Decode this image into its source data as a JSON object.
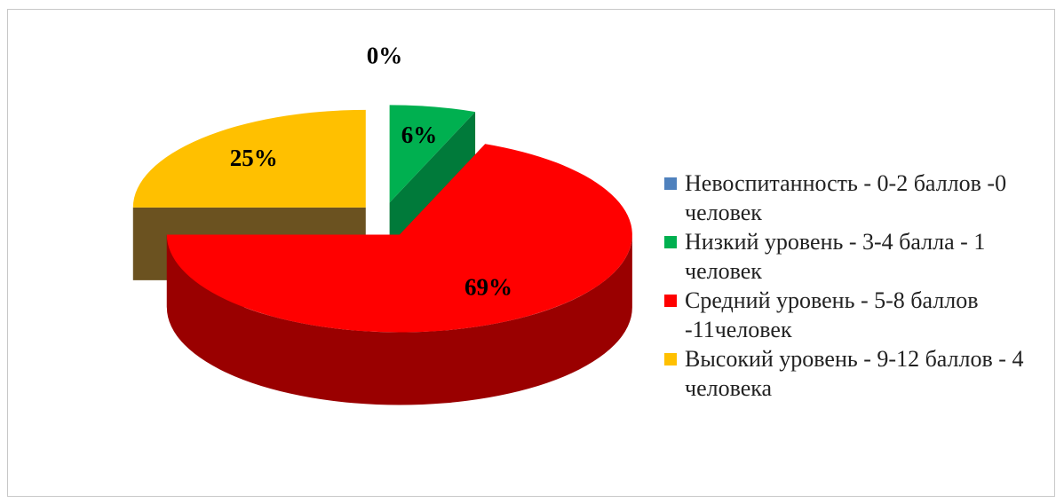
{
  "chart_data": {
    "type": "pie3d",
    "categories": [
      "Невоспитанность - 0-2 баллов -0 человек",
      "Низкий уровень - 3-4 балла - 1 человек",
      "Средний уровень - 5-8 баллов -11человек",
      "Высокий уровень - 9-12 баллов - 4 человека"
    ],
    "values": [
      0,
      6,
      69,
      25
    ],
    "value_labels": [
      "0%",
      "6%",
      "69%",
      "25%"
    ],
    "colors": [
      "#4f81bd",
      "#00b050",
      "#ff0000",
      "#ffc000"
    ],
    "side_colors": [
      "#2f4f7f",
      "#007a3a",
      "#9a0000",
      "#6b5220"
    ],
    "legend": "right"
  }
}
